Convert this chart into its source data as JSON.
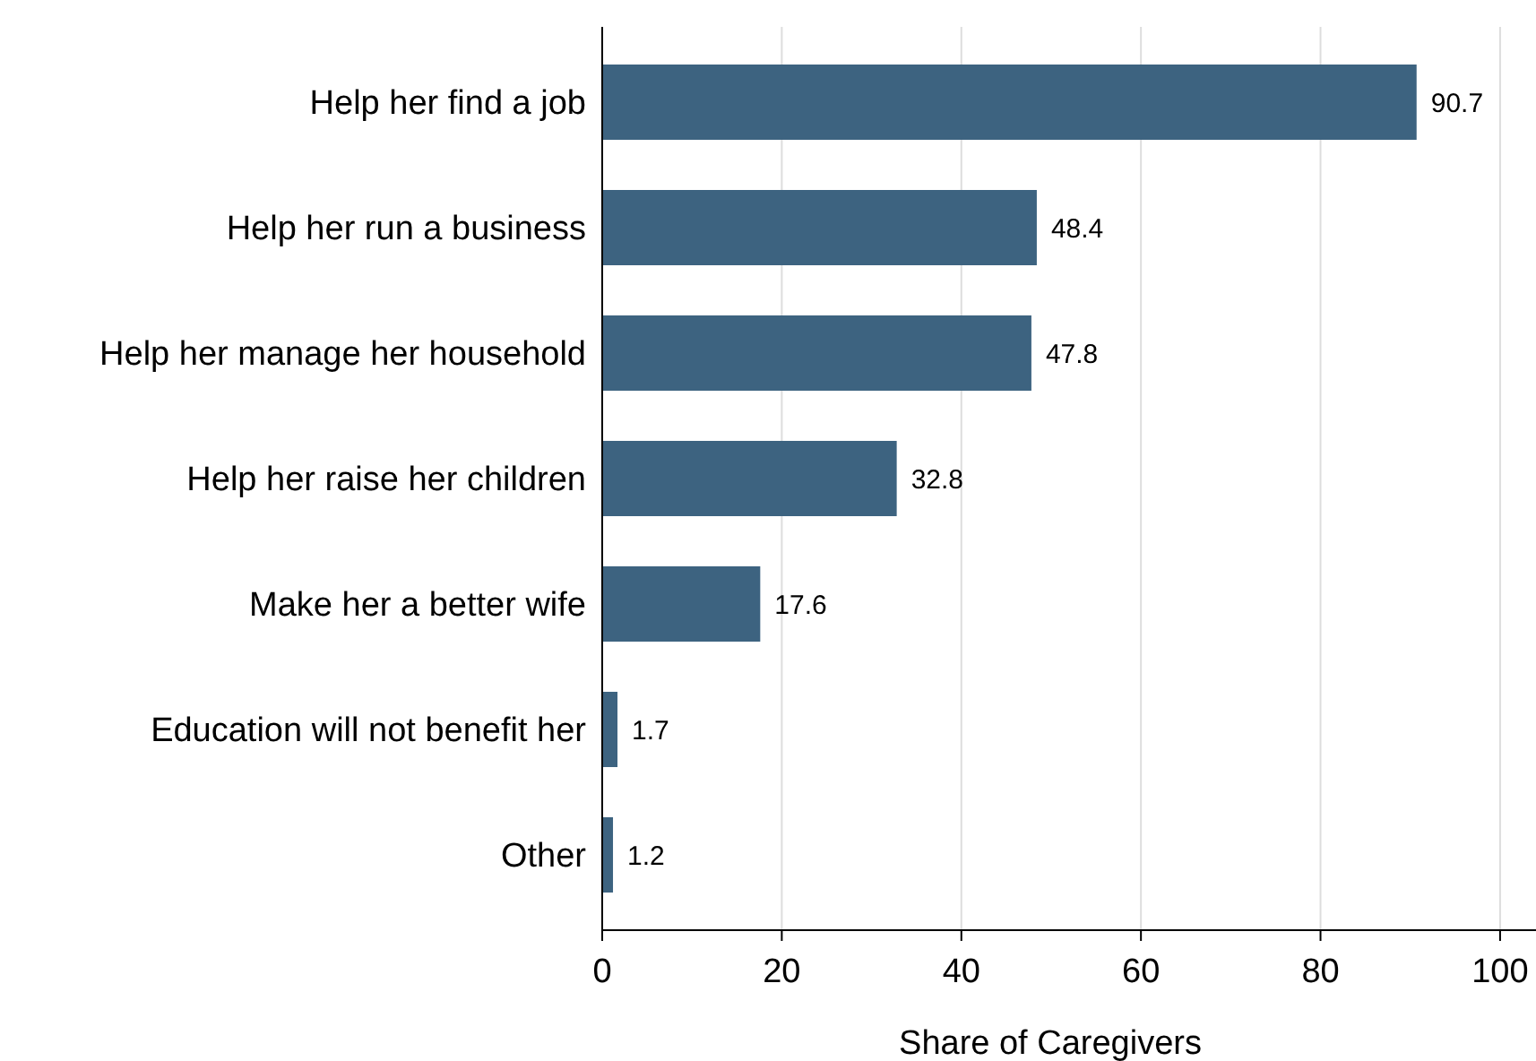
{
  "chart_data": {
    "type": "bar",
    "orientation": "horizontal",
    "xlabel": "Share of Caregivers",
    "categories": [
      "Help her find a job",
      "Help her run a business",
      "Help her manage her household",
      "Help her raise her children",
      "Make her a better wife",
      "Education will not benefit her",
      "Other"
    ],
    "values": [
      90.7,
      48.4,
      47.8,
      32.8,
      17.6,
      1.7,
      1.2
    ],
    "color": "#3d6380",
    "data_labels": true,
    "grid": "x",
    "xlim": [
      0,
      104
    ],
    "xticks": [
      0,
      20,
      40,
      60,
      80,
      100
    ]
  }
}
